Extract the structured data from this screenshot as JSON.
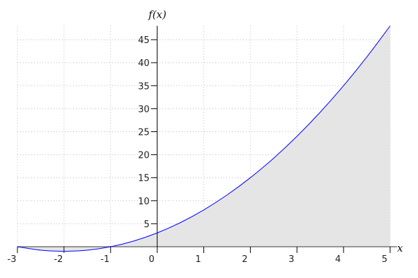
{
  "chart_data": {
    "type": "area",
    "xlabel": "x",
    "ylabel": "f(x)",
    "xlim": [
      -3,
      5
    ],
    "ylim": [
      -1,
      48
    ],
    "x_ticks": [
      -3,
      -2,
      -1,
      0,
      1,
      2,
      3,
      4,
      5
    ],
    "y_ticks": [
      5,
      10,
      15,
      20,
      25,
      30,
      35,
      40,
      45
    ],
    "grid": true,
    "grid_style": "dotted",
    "series": [
      {
        "x": [
          -3,
          -2.5,
          -2,
          -1.5,
          -1,
          -0.5,
          0,
          0.5,
          1,
          1.5,
          2,
          2.5,
          3,
          3.5,
          4,
          4.5,
          5
        ],
        "y": [
          0,
          -0.75,
          -1,
          -0.75,
          0,
          1.25,
          3,
          5.25,
          8,
          11.25,
          15,
          19.25,
          24,
          29.25,
          35,
          41.25,
          48
        ],
        "line_color": "#0000ff",
        "fill_color": "#e5e5e5"
      }
    ]
  }
}
